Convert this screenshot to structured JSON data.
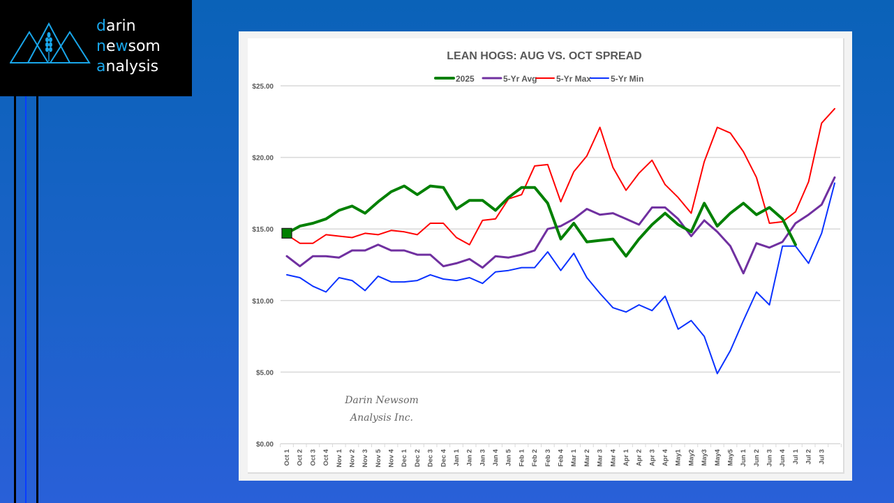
{
  "brand": {
    "line1_accent": "d",
    "line1_rest": "arin",
    "line2_accent": "n",
    "line2_mid": "e",
    "line2_accent2": "w",
    "line2_rest": "som",
    "line3_accent": "a",
    "line3_rest": "nalysis",
    "accent_color": "#19a6ea"
  },
  "watermark": {
    "line1": "Darin Newsom",
    "line2": "Analysis Inc."
  },
  "chart_data": {
    "type": "line",
    "title": "LEAN HOGS: AUG VS. OCT SPREAD",
    "xlabel": "",
    "ylabel": "",
    "ylim": [
      0,
      25
    ],
    "yticks": [
      0,
      5,
      10,
      15,
      20,
      25
    ],
    "ytick_labels": [
      "$0.00",
      "$5.00",
      "$10.00",
      "$15.00",
      "$20.00",
      "$25.00"
    ],
    "grid": true,
    "legend_position": "top-center",
    "categories": [
      "Oct 1",
      "Oct 2",
      "Oct 3",
      "Oct 4",
      "Nov 1",
      "Nov 2",
      "Nov 3",
      "Nov 5",
      "Nov 4",
      "Dec 1",
      "Dec 2",
      "Dec 3",
      "Dec 4",
      "Jan 1",
      "Jan 2",
      "Jan 3",
      "Jan 4",
      "Jan 5",
      "Feb 1",
      "Feb 2",
      "Feb 3",
      "Feb 4",
      "Mar 1",
      "Mar 2",
      "Mar 3",
      "Mar 4",
      "Apr 1",
      "Apr 2",
      "Apr 3",
      "Apr 4",
      "May1",
      "May2",
      "May3",
      "May4",
      "May5",
      "Jun 1",
      "Jun 2",
      "Jun 3",
      "Jun 4",
      "Jul 1",
      "Jul 2",
      "Jul 3",
      ""
    ],
    "series": [
      {
        "name": "2025",
        "color": "#008000",
        "width": 4,
        "marker_first": true,
        "values": [
          14.7,
          15.2,
          15.4,
          15.7,
          16.3,
          16.6,
          16.1,
          16.9,
          17.6,
          18.0,
          17.4,
          18.0,
          17.9,
          16.4,
          17.0,
          17.0,
          16.3,
          17.2,
          17.9,
          17.9,
          16.8,
          14.3,
          15.4,
          14.1,
          14.2,
          14.3,
          13.1,
          14.3,
          15.3,
          16.1,
          15.3,
          14.8,
          16.8,
          15.2,
          16.1,
          16.8,
          16.0,
          16.5,
          15.7,
          13.9
        ]
      },
      {
        "name": "5-Yr Avg",
        "color": "#7030a0",
        "width": 3,
        "values": [
          13.1,
          12.4,
          13.1,
          13.1,
          13.0,
          13.5,
          13.5,
          13.9,
          13.5,
          13.5,
          13.2,
          13.2,
          12.4,
          12.6,
          12.9,
          12.3,
          13.1,
          13.0,
          13.2,
          13.5,
          15.0,
          15.2,
          15.7,
          16.4,
          16.0,
          16.1,
          15.7,
          15.3,
          16.5,
          16.5,
          15.7,
          14.5,
          15.6,
          14.8,
          13.8,
          11.9,
          14.0,
          13.7,
          14.1,
          15.4,
          16.0,
          16.7,
          18.6
        ]
      },
      {
        "name": "5-Yr Max",
        "color": "#ff0000",
        "width": 2,
        "values": [
          14.6,
          14.0,
          14.0,
          14.6,
          14.5,
          14.4,
          14.7,
          14.6,
          14.9,
          14.8,
          14.6,
          15.4,
          15.4,
          14.4,
          13.9,
          15.6,
          15.7,
          17.1,
          17.4,
          19.4,
          19.5,
          16.9,
          19.0,
          20.1,
          22.1,
          19.3,
          17.7,
          18.9,
          19.8,
          18.1,
          17.2,
          16.1,
          19.7,
          22.1,
          21.7,
          20.4,
          18.6,
          15.4,
          15.5,
          16.2,
          18.3,
          22.4,
          23.4
        ]
      },
      {
        "name": "5-Yr Min",
        "color": "#0a32ff",
        "width": 2,
        "values": [
          11.8,
          11.6,
          11.0,
          10.6,
          11.6,
          11.4,
          10.7,
          11.7,
          11.3,
          11.3,
          11.4,
          11.8,
          11.5,
          11.4,
          11.6,
          11.2,
          12.0,
          12.1,
          12.3,
          12.3,
          13.4,
          12.1,
          13.3,
          11.6,
          10.5,
          9.5,
          9.2,
          9.7,
          9.3,
          10.3,
          8.0,
          8.6,
          7.5,
          4.9,
          6.5,
          8.6,
          10.6,
          9.7,
          13.8,
          13.8,
          12.6,
          14.7,
          18.2
        ]
      }
    ]
  }
}
